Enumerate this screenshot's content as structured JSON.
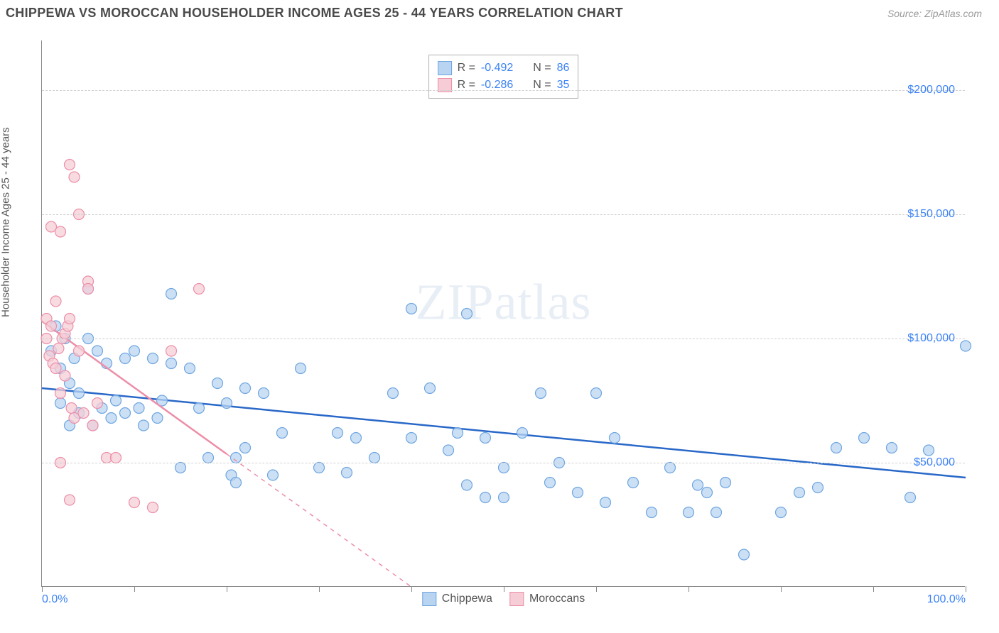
{
  "header": {
    "title": "CHIPPEWA VS MOROCCAN HOUSEHOLDER INCOME AGES 25 - 44 YEARS CORRELATION CHART",
    "source": "Source: ZipAtlas.com"
  },
  "chart": {
    "type": "scatter",
    "ylabel": "Householder Income Ages 25 - 44 years",
    "xlim": [
      0,
      100
    ],
    "ylim": [
      0,
      220000
    ],
    "x_ticks": [
      0,
      10,
      20,
      30,
      40,
      50,
      60,
      70,
      80,
      90,
      100
    ],
    "x_tick_labels": {
      "0": "0.0%",
      "100": "100.0%"
    },
    "y_gridlines": [
      50000,
      100000,
      150000,
      200000
    ],
    "y_tick_labels": [
      "$50,000",
      "$100,000",
      "$150,000",
      "$200,000"
    ],
    "watermark": "ZIPatlas",
    "background_color": "#ffffff",
    "grid_color": "#d0d0d0",
    "axis_color": "#888888",
    "marker_radius": 7.5,
    "marker_stroke_width": 1.2,
    "series": [
      {
        "name": "Chippewa",
        "fill_color": "#b9d4f1",
        "stroke_color": "#6fa6e0",
        "r_value": "-0.492",
        "n_value": "86",
        "trend": {
          "x1": 0,
          "y1": 80000,
          "x2": 100,
          "y2": 44000,
          "dash_after_x": null
        },
        "points": [
          [
            1,
            95000
          ],
          [
            1.5,
            105000
          ],
          [
            2,
            88000
          ],
          [
            2,
            74000
          ],
          [
            2.5,
            100000
          ],
          [
            3,
            82000
          ],
          [
            3,
            65000
          ],
          [
            3.5,
            92000
          ],
          [
            4,
            70000
          ],
          [
            4,
            78000
          ],
          [
            5,
            120000
          ],
          [
            5,
            100000
          ],
          [
            5.5,
            65000
          ],
          [
            6,
            95000
          ],
          [
            6.5,
            72000
          ],
          [
            7,
            90000
          ],
          [
            7.5,
            68000
          ],
          [
            8,
            75000
          ],
          [
            9,
            92000
          ],
          [
            9,
            70000
          ],
          [
            10,
            95000
          ],
          [
            10.5,
            72000
          ],
          [
            11,
            65000
          ],
          [
            12,
            92000
          ],
          [
            12.5,
            68000
          ],
          [
            13,
            75000
          ],
          [
            14,
            118000
          ],
          [
            14,
            90000
          ],
          [
            15,
            48000
          ],
          [
            16,
            88000
          ],
          [
            17,
            72000
          ],
          [
            18,
            52000
          ],
          [
            19,
            82000
          ],
          [
            20,
            74000
          ],
          [
            20.5,
            45000
          ],
          [
            21,
            52000
          ],
          [
            21,
            42000
          ],
          [
            22,
            80000
          ],
          [
            22,
            56000
          ],
          [
            24,
            78000
          ],
          [
            25,
            45000
          ],
          [
            26,
            62000
          ],
          [
            28,
            88000
          ],
          [
            30,
            48000
          ],
          [
            32,
            62000
          ],
          [
            33,
            46000
          ],
          [
            34,
            60000
          ],
          [
            36,
            52000
          ],
          [
            38,
            78000
          ],
          [
            40,
            112000
          ],
          [
            40,
            60000
          ],
          [
            42,
            80000
          ],
          [
            44,
            55000
          ],
          [
            45,
            62000
          ],
          [
            46,
            41000
          ],
          [
            46,
            110000
          ],
          [
            48,
            60000
          ],
          [
            48,
            36000
          ],
          [
            50,
            48000
          ],
          [
            50,
            36000
          ],
          [
            52,
            62000
          ],
          [
            54,
            78000
          ],
          [
            55,
            42000
          ],
          [
            56,
            50000
          ],
          [
            58,
            38000
          ],
          [
            60,
            78000
          ],
          [
            61,
            34000
          ],
          [
            62,
            60000
          ],
          [
            64,
            42000
          ],
          [
            66,
            30000
          ],
          [
            68,
            48000
          ],
          [
            70,
            30000
          ],
          [
            71,
            41000
          ],
          [
            72,
            38000
          ],
          [
            73,
            30000
          ],
          [
            74,
            42000
          ],
          [
            76,
            13000
          ],
          [
            80,
            30000
          ],
          [
            82,
            38000
          ],
          [
            84,
            40000
          ],
          [
            86,
            56000
          ],
          [
            89,
            60000
          ],
          [
            92,
            56000
          ],
          [
            94,
            36000
          ],
          [
            96,
            55000
          ],
          [
            100,
            97000
          ]
        ]
      },
      {
        "name": "Moroccans",
        "fill_color": "#f6cdd7",
        "stroke_color": "#ec8fa8",
        "r_value": "-0.286",
        "n_value": "35",
        "trend": {
          "x1": 0,
          "y1": 107000,
          "x2": 40,
          "y2": 0,
          "dash_after_x": 20
        },
        "points": [
          [
            0.5,
            100000
          ],
          [
            0.5,
            108000
          ],
          [
            0.8,
            93000
          ],
          [
            1,
            105000
          ],
          [
            1,
            145000
          ],
          [
            1.2,
            90000
          ],
          [
            1.5,
            88000
          ],
          [
            1.5,
            115000
          ],
          [
            1.8,
            96000
          ],
          [
            2,
            143000
          ],
          [
            2,
            78000
          ],
          [
            2.2,
            100000
          ],
          [
            2.5,
            102000
          ],
          [
            2.5,
            85000
          ],
          [
            2.8,
            105000
          ],
          [
            3,
            170000
          ],
          [
            3,
            108000
          ],
          [
            3.2,
            72000
          ],
          [
            3.5,
            165000
          ],
          [
            3.5,
            68000
          ],
          [
            4,
            150000
          ],
          [
            4,
            95000
          ],
          [
            4.5,
            70000
          ],
          [
            5,
            123000
          ],
          [
            5,
            120000
          ],
          [
            5.5,
            65000
          ],
          [
            6,
            74000
          ],
          [
            7,
            52000
          ],
          [
            8,
            52000
          ],
          [
            2,
            50000
          ],
          [
            3,
            35000
          ],
          [
            10,
            34000
          ],
          [
            12,
            32000
          ],
          [
            14,
            95000
          ],
          [
            17,
            120000
          ]
        ]
      }
    ]
  },
  "legend": {
    "series": [
      {
        "label": "Chippewa",
        "fill": "#b9d4f1",
        "stroke": "#6fa6e0"
      },
      {
        "label": "Moroccans",
        "fill": "#f6cdd7",
        "stroke": "#ec8fa8"
      }
    ]
  }
}
